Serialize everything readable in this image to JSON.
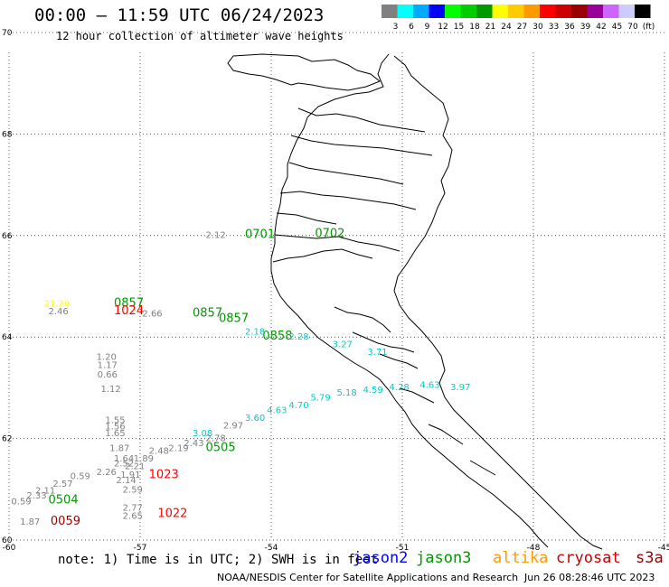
{
  "header": {
    "title": "00:00 – 11:59 UTC 06/24/2023",
    "subtitle": "12 hour collection of altimeter wave heights"
  },
  "colorbar": {
    "colors": [
      "#808080",
      "#00ffff",
      "#00aaff",
      "#0000ff",
      "#00ff00",
      "#00cc00",
      "#009900",
      "#ffff00",
      "#ffcc00",
      "#ff9900",
      "#ff0000",
      "#cc0000",
      "#990000",
      "#990099",
      "#cc66ff",
      "#ccccff",
      "#000000"
    ],
    "labels": [
      "3",
      "6",
      "9",
      "12",
      "15",
      "18",
      "21",
      "24",
      "27",
      "30",
      "33",
      "36",
      "39",
      "42",
      "45",
      "70",
      "(ft)"
    ]
  },
  "axes": {
    "x_ticks": [
      "-60",
      "-57",
      "-54",
      "-51",
      "-48",
      "-45"
    ],
    "y_ticks": [
      "70",
      "68",
      "66",
      "64",
      "62",
      "60"
    ],
    "lon_range": [
      -60,
      -45
    ],
    "lat_range": [
      60,
      70
    ]
  },
  "observations": [
    {
      "text": "2.12",
      "lon": -55.5,
      "lat": 65.95,
      "color": "#808080"
    },
    {
      "text": "0701",
      "lon": -54.6,
      "lat": 65.95,
      "color": "#009900"
    },
    {
      "text": "0702",
      "lon": -53.0,
      "lat": 65.97,
      "color": "#009900"
    },
    {
      "text": "21.29",
      "lon": -59.2,
      "lat": 64.6,
      "color": "#ffff00"
    },
    {
      "text": "2.46",
      "lon": -59.1,
      "lat": 64.45,
      "color": "#808080"
    },
    {
      "text": "0857",
      "lon": -57.6,
      "lat": 64.6,
      "color": "#009900"
    },
    {
      "text": "1024",
      "lon": -57.6,
      "lat": 64.45,
      "color": "#ff0000"
    },
    {
      "text": "2.66",
      "lon": -56.95,
      "lat": 64.4,
      "color": "#808080"
    },
    {
      "text": "0857",
      "lon": -55.8,
      "lat": 64.4,
      "color": "#009900"
    },
    {
      "text": "0857",
      "lon": -55.2,
      "lat": 64.3,
      "color": "#009900"
    },
    {
      "text": "0858",
      "lon": -54.2,
      "lat": 63.95,
      "color": "#009900"
    },
    {
      "text": "2.18",
      "lon": -54.6,
      "lat": 64.05,
      "color": "#00cccc"
    },
    {
      "text": "2.28",
      "lon": -53.6,
      "lat": 63.95,
      "color": "#00cccc"
    },
    {
      "text": "3.27",
      "lon": -52.6,
      "lat": 63.8,
      "color": "#00cccc"
    },
    {
      "text": "3.71",
      "lon": -51.8,
      "lat": 63.65,
      "color": "#00cccc"
    },
    {
      "text": "1.20",
      "lon": -58.0,
      "lat": 63.55,
      "color": "#808080"
    },
    {
      "text": "1.17",
      "lon": -57.98,
      "lat": 63.39,
      "color": "#808080"
    },
    {
      "text": "0.66",
      "lon": -57.98,
      "lat": 63.2,
      "color": "#808080"
    },
    {
      "text": "1.12",
      "lon": -57.9,
      "lat": 62.92,
      "color": "#808080"
    },
    {
      "text": "3.97",
      "lon": -49.9,
      "lat": 62.95,
      "color": "#00cccc"
    },
    {
      "text": "4.63",
      "lon": -50.6,
      "lat": 63.0,
      "color": "#00cccc"
    },
    {
      "text": "4.28",
      "lon": -51.3,
      "lat": 62.95,
      "color": "#00cccc"
    },
    {
      "text": "4.59",
      "lon": -51.9,
      "lat": 62.9,
      "color": "#00cccc"
    },
    {
      "text": "5.18",
      "lon": -52.5,
      "lat": 62.85,
      "color": "#00cccc"
    },
    {
      "text": "5.79",
      "lon": -53.1,
      "lat": 62.75,
      "color": "#00cccc"
    },
    {
      "text": "4.70",
      "lon": -53.6,
      "lat": 62.6,
      "color": "#00cccc"
    },
    {
      "text": "4.63",
      "lon": -54.1,
      "lat": 62.5,
      "color": "#00cccc"
    },
    {
      "text": "3.60",
      "lon": -54.6,
      "lat": 62.35,
      "color": "#00cccc"
    },
    {
      "text": "2.97",
      "lon": -55.1,
      "lat": 62.2,
      "color": "#808080"
    },
    {
      "text": "3.08",
      "lon": -55.8,
      "lat": 62.05,
      "color": "#00cccc"
    },
    {
      "text": "2.78",
      "lon": -55.5,
      "lat": 61.95,
      "color": "#808080"
    },
    {
      "text": "1.55",
      "lon": -57.8,
      "lat": 62.3,
      "color": "#808080"
    },
    {
      "text": "1.56",
      "lon": -57.8,
      "lat": 62.18,
      "color": "#808080"
    },
    {
      "text": "1.65",
      "lon": -57.8,
      "lat": 62.05,
      "color": "#808080"
    },
    {
      "text": "1.87",
      "lon": -57.7,
      "lat": 61.75,
      "color": "#808080"
    },
    {
      "text": "2.43",
      "lon": -56.0,
      "lat": 61.85,
      "color": "#808080"
    },
    {
      "text": "2.19",
      "lon": -56.35,
      "lat": 61.75,
      "color": "#808080"
    },
    {
      "text": "0505",
      "lon": -55.5,
      "lat": 61.75,
      "color": "#009900"
    },
    {
      "text": "2.48",
      "lon": -56.8,
      "lat": 61.7,
      "color": "#808080"
    },
    {
      "text": "1.64",
      "lon": -57.6,
      "lat": 61.55,
      "color": "#808080"
    },
    {
      "text": "1.89",
      "lon": -57.15,
      "lat": 61.55,
      "color": "#808080"
    },
    {
      "text": "2.52",
      "lon": -57.6,
      "lat": 61.45,
      "color": "#808080"
    },
    {
      "text": "2.21",
      "lon": -57.35,
      "lat": 61.4,
      "color": "#808080"
    },
    {
      "text": "2.26",
      "lon": -58.0,
      "lat": 61.28,
      "color": "#808080"
    },
    {
      "text": "1.91",
      "lon": -57.45,
      "lat": 61.23,
      "color": "#808080"
    },
    {
      "text": "1023",
      "lon": -56.8,
      "lat": 61.22,
      "color": "#ff0000"
    },
    {
      "text": "0.59",
      "lon": -58.6,
      "lat": 61.2,
      "color": "#808080"
    },
    {
      "text": "2.14",
      "lon": -57.55,
      "lat": 61.12,
      "color": "#808080"
    },
    {
      "text": "2.57",
      "lon": -59.0,
      "lat": 61.05,
      "color": "#808080"
    },
    {
      "text": "2.59",
      "lon": -57.4,
      "lat": 60.93,
      "color": "#808080"
    },
    {
      "text": "2.11",
      "lon": -59.4,
      "lat": 60.92,
      "color": "#808080"
    },
    {
      "text": "2.33",
      "lon": -59.6,
      "lat": 60.82,
      "color": "#808080"
    },
    {
      "text": "0.59",
      "lon": -59.95,
      "lat": 60.7,
      "color": "#808080"
    },
    {
      "text": "0504",
      "lon": -59.1,
      "lat": 60.72,
      "color": "#009900"
    },
    {
      "text": "2.77",
      "lon": -57.4,
      "lat": 60.58,
      "color": "#808080"
    },
    {
      "text": "2.65",
      "lon": -57.4,
      "lat": 60.42,
      "color": "#808080"
    },
    {
      "text": "1022",
      "lon": -56.6,
      "lat": 60.45,
      "color": "#ff0000"
    },
    {
      "text": "1.87",
      "lon": -59.75,
      "lat": 60.3,
      "color": "#808080"
    },
    {
      "text": "0059",
      "lon": -59.05,
      "lat": 60.3,
      "color": "#990000"
    }
  ],
  "footer": {
    "note": "note: 1) Time is in UTC; 2) SWH is in feet",
    "satellites": [
      {
        "name": "jason2",
        "color": "#0000ff"
      },
      {
        "name": "jason3",
        "color": "#009900"
      },
      {
        "name": "altika",
        "color": "#ff9900"
      },
      {
        "name": "cryosat",
        "color": "#cc0000"
      },
      {
        "name": "s3a",
        "color": "#990000"
      }
    ],
    "credit": "NOAA/NESDIS Center for Satellite Applications and Research",
    "timestamp": "Jun 26 08:28:46 UTC 2023"
  }
}
